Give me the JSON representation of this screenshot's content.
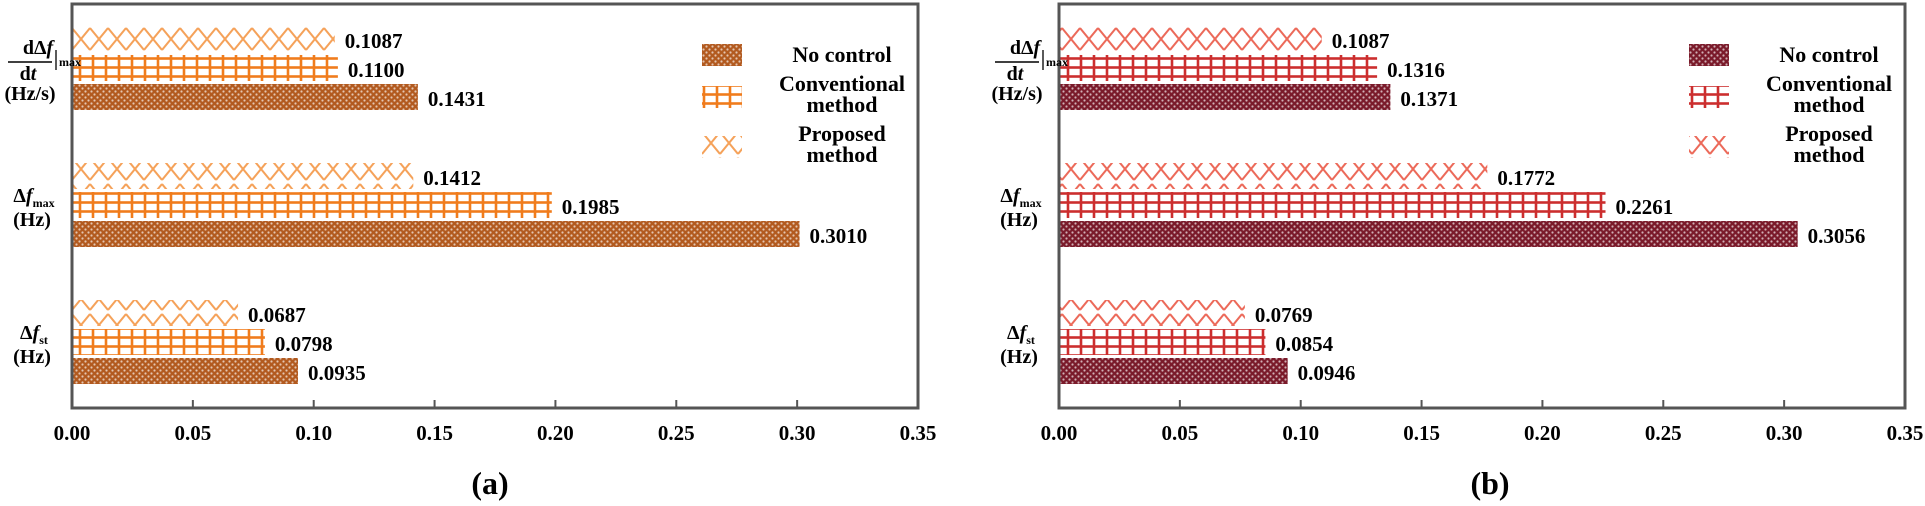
{
  "chart_data": [
    {
      "type": "bar",
      "orientation": "horizontal",
      "panel_label": "(a)",
      "xlim": [
        0,
        0.35
      ],
      "xticks": [
        "0.00",
        "0.05",
        "0.10",
        "0.15",
        "0.20",
        "0.25",
        "0.30",
        "0.35"
      ],
      "categories": [
        "dΔf/dt|max (Hz/s)",
        "Δfmax (Hz)",
        "Δfst (Hz)"
      ],
      "series": [
        {
          "name": "Proposed method",
          "pattern": "cross",
          "values": [
            0.1087,
            0.1412,
            0.0687
          ],
          "labels": [
            "0.1087",
            "0.1412",
            "0.0687"
          ]
        },
        {
          "name": "Conventional method",
          "pattern": "grid",
          "values": [
            0.11,
            0.1985,
            0.0798
          ],
          "labels": [
            "0.1100",
            "0.1985",
            "0.0798"
          ]
        },
        {
          "name": "No control",
          "pattern": "dots",
          "values": [
            0.1431,
            0.301,
            0.0935
          ],
          "labels": [
            "0.1431",
            "0.3010",
            "0.0935"
          ]
        }
      ],
      "legend": {
        "position": "top-right",
        "items": [
          {
            "lines": [
              "No control"
            ],
            "pattern": "dots"
          },
          {
            "lines": [
              "Conventional",
              "method"
            ],
            "pattern": "grid"
          },
          {
            "lines": [
              "Proposed",
              "method"
            ],
            "pattern": "cross"
          }
        ]
      },
      "colors": {
        "dots": "#b25a1f",
        "grid": "#f07c1c",
        "cross": "#f5a25a"
      }
    },
    {
      "type": "bar",
      "orientation": "horizontal",
      "panel_label": "(b)",
      "xlim": [
        0,
        0.35
      ],
      "xticks": [
        "0.00",
        "0.05",
        "0.10",
        "0.15",
        "0.20",
        "0.25",
        "0.30",
        "0.35"
      ],
      "categories": [
        "dΔf/dt|max (Hz/s)",
        "Δfmax (Hz)",
        "Δfst (Hz)"
      ],
      "series": [
        {
          "name": "Proposed method",
          "pattern": "cross",
          "values": [
            0.1087,
            0.1772,
            0.0769
          ],
          "labels": [
            "0.1087",
            "0.1772",
            "0.0769"
          ]
        },
        {
          "name": "Conventional method",
          "pattern": "grid",
          "values": [
            0.1316,
            0.2261,
            0.0854
          ],
          "labels": [
            "0.1316",
            "0.2261",
            "0.0854"
          ]
        },
        {
          "name": "No control",
          "pattern": "dots",
          "values": [
            0.1371,
            0.3056,
            0.0946
          ],
          "labels": [
            "0.1371",
            "0.3056",
            "0.0946"
          ]
        }
      ],
      "legend": {
        "position": "top-right",
        "items": [
          {
            "lines": [
              "No control"
            ],
            "pattern": "dots"
          },
          {
            "lines": [
              "Conventional",
              "method"
            ],
            "pattern": "grid"
          },
          {
            "lines": [
              "Proposed",
              "method"
            ],
            "pattern": "cross"
          }
        ]
      },
      "colors": {
        "dots": "#7a1a2a",
        "grid": "#cc2e2e",
        "cross": "#ec6a5a"
      }
    }
  ],
  "category_labels": {
    "rocof": {
      "num": "dΔf",
      "num_it": "f",
      "den": "dt",
      "den_it": "t",
      "sub": "max",
      "unit": "(Hz/s)"
    },
    "fmax": {
      "main": "Δf",
      "main_it": "f",
      "sub": "max",
      "unit": "(Hz)"
    },
    "fst": {
      "main": "Δf",
      "main_it": "f",
      "sub": "st",
      "unit": "(Hz)"
    }
  }
}
